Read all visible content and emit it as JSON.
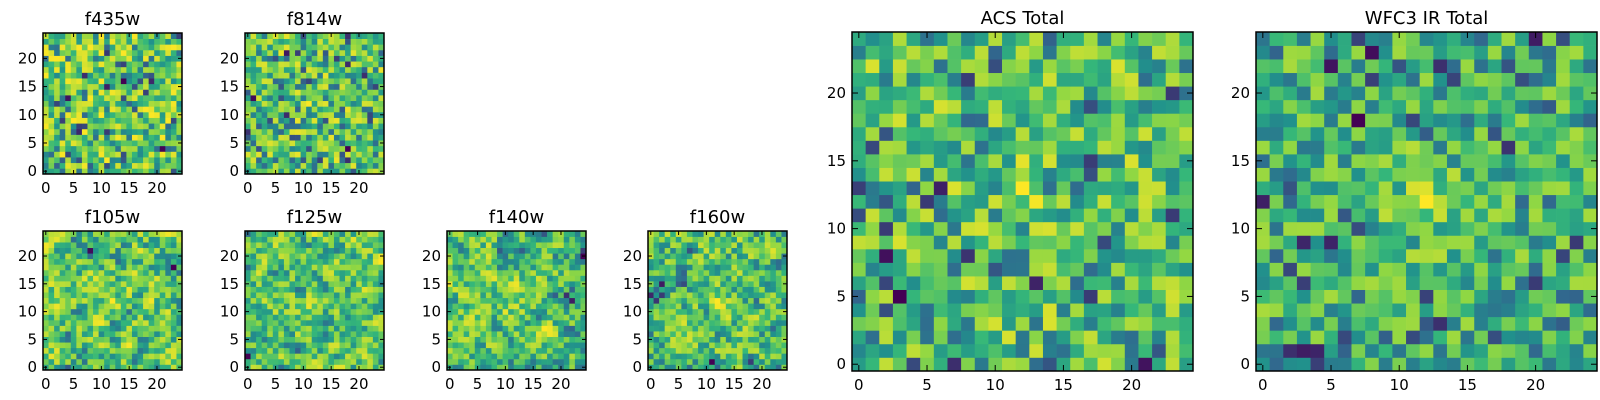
{
  "colors": {
    "colormap": "viridis",
    "cmap_stops": [
      "#440154",
      "#31688e",
      "#21918c",
      "#35b779",
      "#90d743",
      "#fde725"
    ]
  },
  "chart_data": [
    {
      "type": "heatmap",
      "title": "f435w",
      "grid_size": 25,
      "xticks": [
        0,
        5,
        10,
        15,
        20
      ],
      "yticks": [
        0,
        5,
        10,
        15,
        20
      ],
      "xlim": [
        -0.5,
        24.5
      ],
      "ylim": [
        -0.5,
        24.5
      ],
      "seed": 11,
      "smooth": 0,
      "bump": 0,
      "note_values": "pixel values are per-pixel noise; color scale viridis"
    },
    {
      "type": "heatmap",
      "title": "f814w",
      "grid_size": 25,
      "xticks": [
        0,
        5,
        10,
        15,
        20
      ],
      "yticks": [
        0,
        5,
        10,
        15,
        20
      ],
      "xlim": [
        -0.5,
        24.5
      ],
      "ylim": [
        -0.5,
        24.5
      ],
      "seed": 23,
      "smooth": 0,
      "bump": 0.15
    },
    {
      "type": "heatmap",
      "title": "f105w",
      "grid_size": 25,
      "xticks": [
        0,
        5,
        10,
        15,
        20
      ],
      "yticks": [
        0,
        5,
        10,
        15,
        20
      ],
      "xlim": [
        -0.5,
        24.5
      ],
      "ylim": [
        -0.5,
        24.5
      ],
      "seed": 37,
      "smooth": 1,
      "bump": 0.1
    },
    {
      "type": "heatmap",
      "title": "f125w",
      "grid_size": 25,
      "xticks": [
        0,
        5,
        10,
        15,
        20
      ],
      "yticks": [
        0,
        5,
        10,
        15,
        20
      ],
      "xlim": [
        -0.5,
        24.5
      ],
      "ylim": [
        -0.5,
        24.5
      ],
      "seed": 41,
      "smooth": 1,
      "bump": 0.1
    },
    {
      "type": "heatmap",
      "title": "f140w",
      "grid_size": 25,
      "xticks": [
        0,
        5,
        10,
        15,
        20
      ],
      "yticks": [
        0,
        5,
        10,
        15,
        20
      ],
      "xlim": [
        -0.5,
        24.5
      ],
      "ylim": [
        -0.5,
        24.5
      ],
      "seed": 53,
      "smooth": 1,
      "bump": 0.1
    },
    {
      "type": "heatmap",
      "title": "f160w",
      "grid_size": 25,
      "xticks": [
        0,
        5,
        10,
        15,
        20
      ],
      "yticks": [
        0,
        5,
        10,
        15,
        20
      ],
      "xlim": [
        -0.5,
        24.5
      ],
      "ylim": [
        -0.5,
        24.5
      ],
      "seed": 67,
      "smooth": 1,
      "bump": 0.1
    },
    {
      "type": "heatmap",
      "title": "ACS Total",
      "grid_size": 25,
      "xticks": [
        0,
        5,
        10,
        15,
        20
      ],
      "yticks": [
        0,
        5,
        10,
        15,
        20
      ],
      "xlim": [
        -0.5,
        24.5
      ],
      "ylim": [
        -0.5,
        24.5
      ],
      "seed": 79,
      "smooth": 0,
      "bump": 0.15
    },
    {
      "type": "heatmap",
      "title": "WFC3 IR Total",
      "grid_size": 25,
      "xticks": [
        0,
        5,
        10,
        15,
        20
      ],
      "yticks": [
        0,
        5,
        10,
        15,
        20
      ],
      "xlim": [
        -0.5,
        24.5
      ],
      "ylim": [
        -0.5,
        24.5
      ],
      "seed": 97,
      "smooth": 0,
      "bump": 0.45
    }
  ]
}
